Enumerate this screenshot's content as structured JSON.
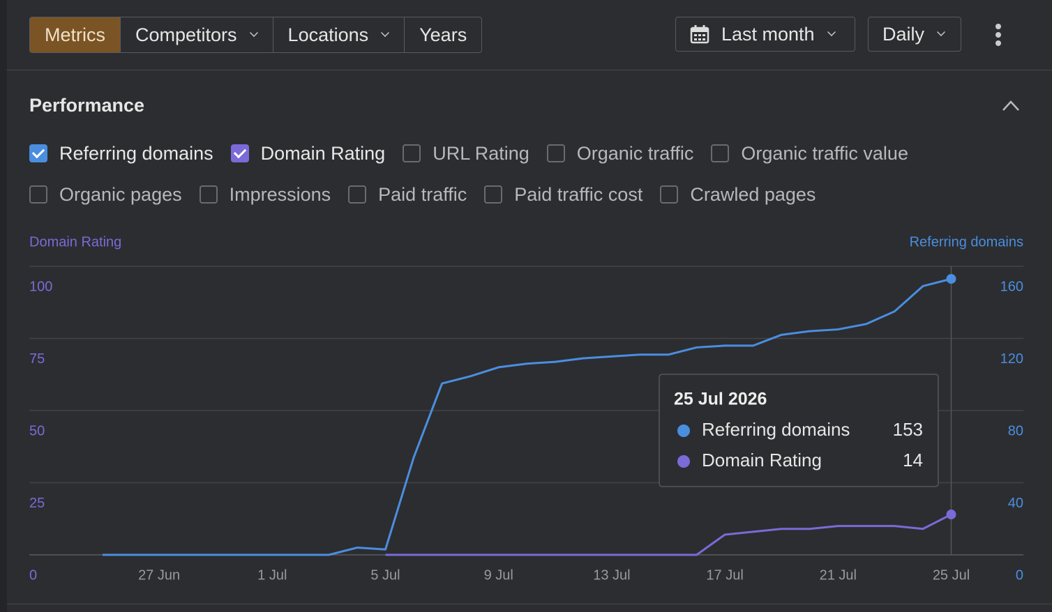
{
  "toolbar": {
    "tabs": [
      {
        "label": "Metrics",
        "active": true,
        "dropdown": false
      },
      {
        "label": "Competitors",
        "active": false,
        "dropdown": true
      },
      {
        "label": "Locations",
        "active": false,
        "dropdown": true
      },
      {
        "label": "Years",
        "active": false,
        "dropdown": false
      }
    ],
    "date_range": "Last month",
    "interval": "Daily"
  },
  "section": {
    "title": "Performance",
    "metrics": [
      {
        "name": "Referring domains",
        "checked": true
      },
      {
        "name": "Domain Rating",
        "checked": true
      },
      {
        "name": "URL Rating",
        "checked": false
      },
      {
        "name": "Organic traffic",
        "checked": false
      },
      {
        "name": "Organic traffic value",
        "checked": false
      },
      {
        "name": "Organic pages",
        "checked": false
      },
      {
        "name": "Impressions",
        "checked": false
      },
      {
        "name": "Paid traffic",
        "checked": false
      },
      {
        "name": "Paid traffic cost",
        "checked": false
      },
      {
        "name": "Crawled pages",
        "checked": false
      }
    ]
  },
  "chart_data": {
    "type": "line",
    "y_label": "Domain Rating",
    "y2_label": "Referring domains",
    "categories": [
      null,
      null,
      "27 Jun",
      null,
      null,
      null,
      "1 Jul",
      null,
      null,
      null,
      "5 Jul",
      null,
      null,
      null,
      "9 Jul",
      null,
      null,
      null,
      "13 Jul",
      null,
      null,
      null,
      "17 Jul",
      null,
      null,
      null,
      "21 Jul",
      null,
      null,
      null,
      "25 Jul"
    ],
    "series": [
      {
        "name": "Referring domains",
        "color": "#4a8ee0",
        "axis": "y2",
        "values": [
          0,
          0,
          0,
          0,
          0,
          0,
          0,
          0,
          0,
          4,
          3,
          54,
          95,
          99,
          104,
          106,
          107,
          109,
          110,
          111,
          111,
          115,
          116,
          116,
          122,
          124,
          125,
          128,
          135,
          149,
          153
        ]
      },
      {
        "name": "Domain Rating",
        "color": "#7b6ad8",
        "values": [
          null,
          null,
          null,
          null,
          null,
          null,
          null,
          null,
          null,
          null,
          0,
          0,
          0,
          0,
          0,
          0,
          0,
          0,
          0,
          0,
          0,
          0,
          7,
          8,
          9,
          9,
          10,
          10,
          10,
          9,
          14
        ]
      }
    ],
    "ylim": [
      0,
      100
    ],
    "yticks": [
      0,
      25,
      50,
      75,
      100
    ],
    "y2lim": [
      0,
      160
    ],
    "y2ticks": [
      0,
      40,
      80,
      120,
      160
    ],
    "grid": true,
    "tooltip": {
      "title": "25 Jul 2026",
      "index": 30
    }
  }
}
